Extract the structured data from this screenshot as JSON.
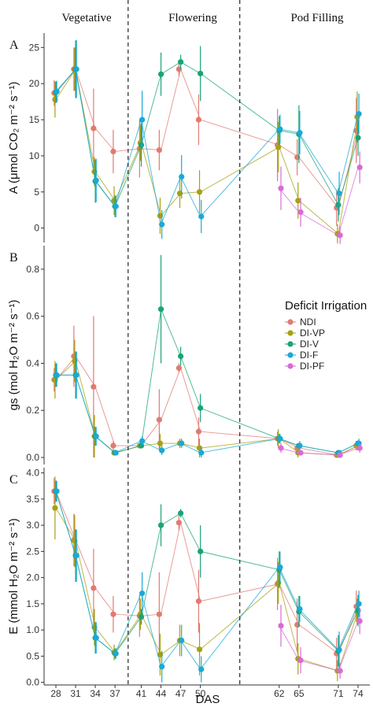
{
  "chart_data": {
    "type": "line",
    "phases": [
      "Vegetative",
      "Flowering",
      "Pod Filling"
    ],
    "xlabel": "DAS",
    "x_ticks": [
      28,
      31,
      34,
      37,
      41,
      44,
      47,
      50,
      62,
      65,
      71,
      74
    ],
    "legend": {
      "title": "Deficit Irrigation",
      "entries": [
        "NDI",
        "DI-VP",
        "DI-V",
        "DI-F",
        "DI-PF"
      ],
      "placement": "right, inside panel B"
    },
    "colors": {
      "NDI": "#e07b73",
      "DI-VP": "#a8a012",
      "DI-V": "#1aa376",
      "DI-F": "#1aa9d8",
      "DI-PF": "#d96ad6"
    },
    "panels": [
      {
        "letter": "A",
        "ylabel": "A (μmol CO₂ m⁻² s⁻¹)",
        "ylim": [
          -2,
          27
        ],
        "yticks": [
          0,
          5,
          10,
          15,
          20,
          25
        ],
        "series": [
          {
            "name": "NDI",
            "points": [
              [
                28,
                18.7,
                1.8
              ],
              [
                31,
                22,
                3
              ],
              [
                34,
                13.8,
                5.5
              ],
              [
                37,
                10.6,
                3
              ],
              [
                41,
                11,
                4
              ],
              [
                44,
                10.8,
                2.8
              ],
              [
                47,
                22,
                1
              ],
              [
                50,
                15,
                3.5
              ],
              [
                62,
                11.5,
                5
              ],
              [
                65,
                9.8,
                2.5
              ],
              [
                71,
                2.8,
                2.5
              ],
              [
                74,
                13.5,
                4.5
              ]
            ]
          },
          {
            "name": "DI-VP",
            "points": [
              [
                28,
                17.8,
                2.5
              ],
              [
                31,
                22,
                3
              ],
              [
                34,
                7.8,
                2
              ],
              [
                37,
                3.8,
                2
              ],
              [
                41,
                11.8,
                2.5
              ],
              [
                44,
                1.7,
                2.5
              ],
              [
                47,
                4.8,
                2
              ],
              [
                50,
                5,
                3
              ],
              [
                62,
                11.2,
                3.5
              ],
              [
                65,
                3.8,
                2.5
              ],
              [
                71,
                -0.8,
                1.3
              ],
              [
                74,
                15.4,
                3.5
              ]
            ]
          },
          {
            "name": "DI-V",
            "points": [
              [
                28,
                18.8,
                1.5
              ],
              [
                31,
                22,
                4
              ],
              [
                34,
                6.5,
                3
              ],
              [
                37,
                3,
                1.5
              ],
              [
                41,
                11.5,
                3
              ],
              [
                44,
                21.3,
                3
              ],
              [
                47,
                23,
                1
              ],
              [
                50,
                21.4,
                3.8
              ],
              [
                62,
                13.5,
                2
              ],
              [
                65,
                13,
                4
              ],
              [
                71,
                3.2,
                2.3
              ],
              [
                74,
                12.5,
                2.5
              ]
            ]
          },
          {
            "name": "DI-F",
            "points": [
              [
                28,
                18.9,
                1.5
              ],
              [
                31,
                22,
                4
              ],
              [
                34,
                6.6,
                3
              ],
              [
                37,
                3,
                1.5
              ],
              [
                41,
                15,
                4
              ],
              [
                44,
                0.5,
                2
              ],
              [
                47,
                7.1,
                3
              ],
              [
                50,
                1.6,
                2.3
              ],
              [
                62,
                13.7,
                2
              ],
              [
                65,
                13.2,
                3
              ],
              [
                71,
                4.8,
                3
              ],
              [
                74,
                15.8,
                2.8
              ]
            ]
          },
          {
            "name": "DI-PF",
            "points": [
              [
                62,
                5.5,
                3
              ],
              [
                65,
                2.2,
                2
              ],
              [
                71,
                -1,
                1.2
              ],
              [
                74,
                8.4,
                2.2
              ]
            ]
          }
        ]
      },
      {
        "letter": "B",
        "ylabel": "gs (mol H₂O m⁻² s⁻¹)",
        "ylim": [
          -0.03,
          0.9
        ],
        "yticks": [
          0.0,
          0.2,
          0.4,
          0.6,
          0.8
        ],
        "series": [
          {
            "name": "NDI",
            "points": [
              [
                28,
                0.33,
                0.05
              ],
              [
                31,
                0.43,
                0.13
              ],
              [
                34,
                0.3,
                0.3
              ],
              [
                37,
                0.05,
                0.02
              ],
              [
                41,
                0.05,
                0.01
              ],
              [
                44,
                0.16,
                0.13
              ],
              [
                47,
                0.38,
                0.02
              ],
              [
                50,
                0.11,
                0.06
              ],
              [
                62,
                0.08,
                0.03
              ],
              [
                65,
                0.04,
                0.02
              ],
              [
                71,
                0.01,
                0.01
              ],
              [
                74,
                0.05,
                0.02
              ]
            ]
          },
          {
            "name": "DI-VP",
            "points": [
              [
                28,
                0.33,
                0.08
              ],
              [
                31,
                0.41,
                0.09
              ],
              [
                34,
                0.09,
                0.09
              ],
              [
                37,
                0.02,
                0.01
              ],
              [
                41,
                0.05,
                0.01
              ],
              [
                44,
                0.06,
                0.04
              ],
              [
                47,
                0.06,
                0.02
              ],
              [
                50,
                0.04,
                0.04
              ],
              [
                62,
                0.08,
                0.04
              ],
              [
                65,
                0.02,
                0.02
              ],
              [
                71,
                0.01,
                0.01
              ],
              [
                74,
                0.05,
                0.02
              ]
            ]
          },
          {
            "name": "DI-V",
            "points": [
              [
                28,
                0.35,
                0.05
              ],
              [
                31,
                0.35,
                0.1
              ],
              [
                34,
                0.09,
                0.04
              ],
              [
                37,
                0.02,
                0.01
              ],
              [
                41,
                0.05,
                0.01
              ],
              [
                44,
                0.63,
                0.23
              ],
              [
                47,
                0.43,
                0.04
              ],
              [
                50,
                0.21,
                0.06
              ],
              [
                62,
                0.08,
                0.02
              ],
              [
                65,
                0.05,
                0.01
              ],
              [
                71,
                0.02,
                0.01
              ],
              [
                74,
                0.06,
                0.01
              ]
            ]
          },
          {
            "name": "DI-F",
            "points": [
              [
                28,
                0.35,
                0.05
              ],
              [
                31,
                0.35,
                0.1
              ],
              [
                34,
                0.09,
                0.04
              ],
              [
                37,
                0.02,
                0.01
              ],
              [
                41,
                0.07,
                0.02
              ],
              [
                44,
                0.03,
                0.02
              ],
              [
                47,
                0.06,
                0.02
              ],
              [
                50,
                0.02,
                0.02
              ],
              [
                62,
                0.08,
                0.02
              ],
              [
                65,
                0.05,
                0.02
              ],
              [
                71,
                0.02,
                0.01
              ],
              [
                74,
                0.06,
                0.02
              ]
            ]
          },
          {
            "name": "DI-PF",
            "points": [
              [
                62,
                0.04,
                0.02
              ],
              [
                65,
                0.02,
                0.01
              ],
              [
                71,
                0.01,
                0.01
              ],
              [
                74,
                0.04,
                0.02
              ]
            ]
          }
        ]
      },
      {
        "letter": "C",
        "ylabel": "E (mmol H₂O m⁻² s⁻¹)",
        "ylim": [
          -0.05,
          4.1
        ],
        "yticks": [
          0.0,
          0.5,
          1.0,
          1.5,
          2.0,
          2.5,
          3.0,
          3.5,
          4.0
        ],
        "series": [
          {
            "name": "NDI",
            "points": [
              [
                28,
                3.65,
                0.25
              ],
              [
                31,
                2.72,
                0.5
              ],
              [
                34,
                1.8,
                0.75
              ],
              [
                37,
                1.3,
                0.35
              ],
              [
                41,
                1.27,
                0.4
              ],
              [
                44,
                1.3,
                0.8
              ],
              [
                47,
                3.05,
                0.15
              ],
              [
                50,
                1.55,
                0.6
              ],
              [
                62,
                1.88,
                0.5
              ],
              [
                65,
                1.1,
                0.5
              ],
              [
                71,
                0.55,
                0.3
              ],
              [
                74,
                1.45,
                0.3
              ]
            ]
          },
          {
            "name": "DI-VP",
            "points": [
              [
                28,
                3.33,
                0.6
              ],
              [
                31,
                2.7,
                0.5
              ],
              [
                34,
                1.05,
                0.35
              ],
              [
                37,
                0.57,
                0.15
              ],
              [
                41,
                1.3,
                0.3
              ],
              [
                44,
                0.53,
                0.4
              ],
              [
                47,
                0.8,
                0.3
              ],
              [
                50,
                0.63,
                0.5
              ],
              [
                62,
                1.9,
                0.4
              ],
              [
                65,
                0.45,
                0.3
              ],
              [
                71,
                0.22,
                0.2
              ],
              [
                74,
                1.35,
                0.25
              ]
            ]
          },
          {
            "name": "DI-V",
            "points": [
              [
                28,
                3.65,
                0.2
              ],
              [
                31,
                2.42,
                0.5
              ],
              [
                34,
                0.85,
                0.3
              ],
              [
                37,
                0.55,
                0.1
              ],
              [
                41,
                1.25,
                0.15
              ],
              [
                44,
                3.0,
                0.4
              ],
              [
                47,
                3.23,
                0.08
              ],
              [
                50,
                2.5,
                0.5
              ],
              [
                62,
                2.15,
                0.35
              ],
              [
                65,
                1.35,
                0.3
              ],
              [
                71,
                0.6,
                0.3
              ],
              [
                74,
                1.37,
                0.3
              ]
            ]
          },
          {
            "name": "DI-F",
            "points": [
              [
                28,
                3.65,
                0.2
              ],
              [
                31,
                2.42,
                0.5
              ],
              [
                34,
                0.85,
                0.3
              ],
              [
                37,
                0.55,
                0.1
              ],
              [
                41,
                1.7,
                0.4
              ],
              [
                44,
                0.3,
                0.3
              ],
              [
                47,
                0.8,
                0.3
              ],
              [
                50,
                0.25,
                0.25
              ],
              [
                62,
                2.2,
                0.3
              ],
              [
                65,
                1.4,
                0.25
              ],
              [
                71,
                0.62,
                0.35
              ],
              [
                74,
                1.5,
                0.25
              ]
            ]
          },
          {
            "name": "DI-PF",
            "points": [
              [
                62,
                1.08,
                0.4
              ],
              [
                65,
                0.42,
                0.25
              ],
              [
                71,
                0.22,
                0.15
              ],
              [
                74,
                1.17,
                0.25
              ]
            ]
          }
        ]
      }
    ]
  }
}
